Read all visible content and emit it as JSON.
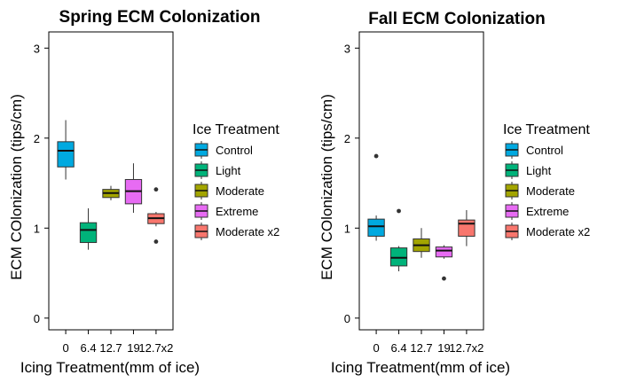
{
  "chart_data": [
    {
      "type": "box",
      "title": "Spring ECM Colonization",
      "xlabel": "Icing Treatment(mm of ice)",
      "ylabel": "ECM COlonization (tips/cm)",
      "ylim": [
        -0.13,
        3.18
      ],
      "yticks": [
        0,
        1,
        2,
        3
      ],
      "categories": [
        "0",
        "6.4",
        "12.7",
        "19",
        "12.7x2"
      ],
      "legend_title": "Ice Treatment",
      "legend_placement": "right",
      "grid": false,
      "boxes": [
        {
          "category": "0",
          "treatment": "Control",
          "color": "#00A9E0",
          "q1": 1.68,
          "median": 1.86,
          "q3": 1.96,
          "whisker_low": 1.54,
          "whisker_high": 2.2,
          "outliers": []
        },
        {
          "category": "6.4",
          "treatment": "Light",
          "color": "#00B37A",
          "q1": 0.84,
          "median": 0.98,
          "q3": 1.06,
          "whisker_low": 0.76,
          "whisker_high": 1.22,
          "outliers": []
        },
        {
          "category": "12.7",
          "treatment": "Moderate",
          "color": "#A3A500",
          "q1": 1.34,
          "median": 1.39,
          "q3": 1.43,
          "whisker_low": 1.31,
          "whisker_high": 1.47,
          "outliers": []
        },
        {
          "category": "19",
          "treatment": "Extreme",
          "color": "#E76BF3",
          "q1": 1.27,
          "median": 1.41,
          "q3": 1.54,
          "whisker_low": 1.17,
          "whisker_high": 1.72,
          "outliers": []
        },
        {
          "category": "12.7x2",
          "treatment": "Moderate x2",
          "color": "#F8766D",
          "q1": 1.05,
          "median": 1.11,
          "q3": 1.16,
          "whisker_low": 1.02,
          "whisker_high": 1.18,
          "outliers": [
            1.43,
            0.85
          ]
        }
      ]
    },
    {
      "type": "box",
      "title": "Fall ECM Colonization",
      "xlabel": "Icing Treatment(mm of ice)",
      "ylabel": "ECM COlonization (tips/cm)",
      "ylim": [
        -0.13,
        3.18
      ],
      "yticks": [
        0,
        1,
        2,
        3
      ],
      "categories": [
        "0",
        "6.4",
        "12.7",
        "19",
        "12.7x2"
      ],
      "legend_title": "Ice Treatment",
      "legend_placement": "right",
      "grid": false,
      "boxes": [
        {
          "category": "0",
          "treatment": "Control",
          "color": "#00A9E0",
          "q1": 0.91,
          "median": 1.02,
          "q3": 1.1,
          "whisker_low": 0.86,
          "whisker_high": 1.14,
          "outliers": [
            1.8
          ]
        },
        {
          "category": "6.4",
          "treatment": "Light",
          "color": "#00B37A",
          "q1": 0.58,
          "median": 0.67,
          "q3": 0.78,
          "whisker_low": 0.52,
          "whisker_high": 0.8,
          "outliers": [
            1.19
          ]
        },
        {
          "category": "12.7",
          "treatment": "Moderate",
          "color": "#A3A500",
          "q1": 0.74,
          "median": 0.81,
          "q3": 0.88,
          "whisker_low": 0.67,
          "whisker_high": 1.0,
          "outliers": []
        },
        {
          "category": "19",
          "treatment": "Extreme",
          "color": "#E76BF3",
          "q1": 0.68,
          "median": 0.75,
          "q3": 0.79,
          "whisker_low": 0.66,
          "whisker_high": 0.81,
          "outliers": [
            0.44
          ]
        },
        {
          "category": "12.7x2",
          "treatment": "Moderate x2",
          "color": "#F8766D",
          "q1": 0.91,
          "median": 1.05,
          "q3": 1.09,
          "whisker_low": 0.8,
          "whisker_high": 1.2,
          "outliers": []
        }
      ]
    }
  ]
}
